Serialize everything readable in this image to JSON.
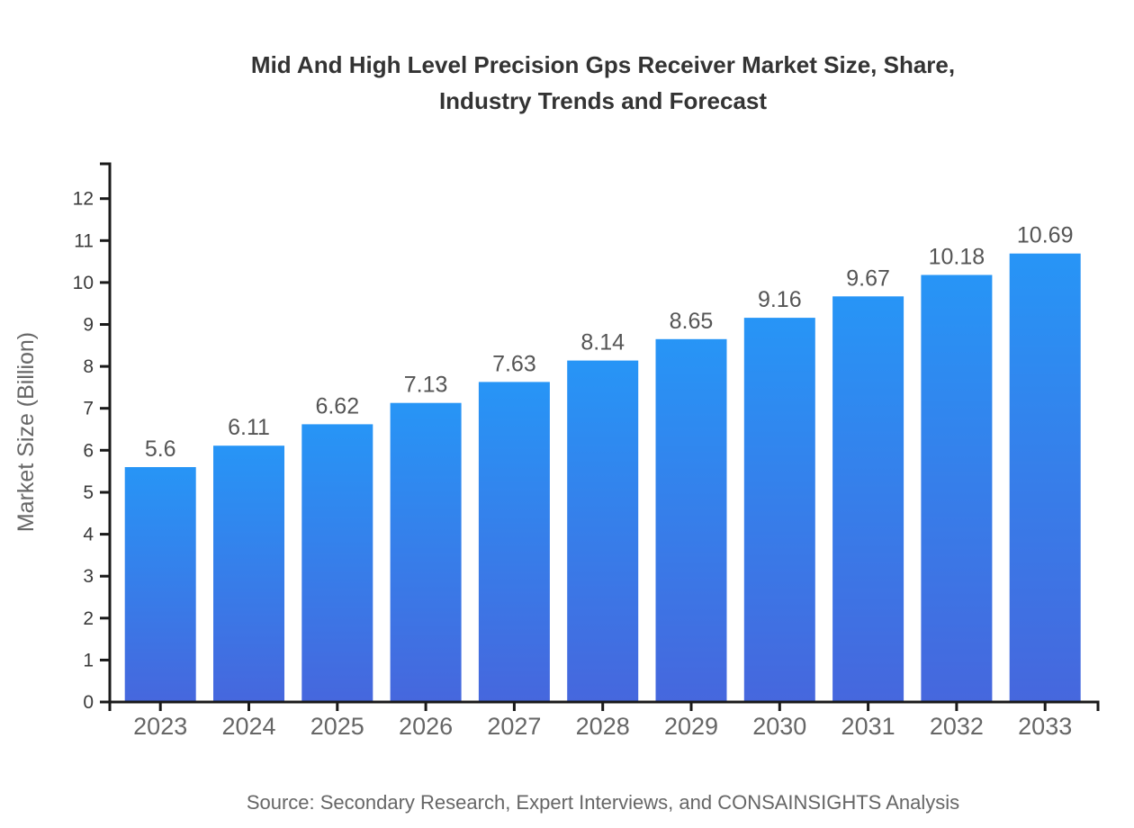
{
  "page": {
    "background": "#ffffff"
  },
  "chart_data": {
    "type": "bar",
    "title": "Mid And High Level Precision Gps Receiver Market Size, Share, Industry Trends and Forecast",
    "title_lines": [
      "Mid And High Level Precision Gps Receiver Market Size, Share,",
      "Industry Trends and Forecast"
    ],
    "categories": [
      "2023",
      "2024",
      "2025",
      "2026",
      "2027",
      "2028",
      "2029",
      "2030",
      "2031",
      "2032",
      "2033"
    ],
    "values": [
      5.6,
      6.11,
      6.62,
      7.13,
      7.63,
      8.14,
      8.65,
      9.16,
      9.67,
      10.18,
      10.69
    ],
    "xlabel": "",
    "ylabel": "Market Size (Billion)",
    "ylim": [
      0,
      12.83
    ],
    "y_ticks": [
      0,
      1,
      2,
      3,
      4,
      5,
      6,
      7,
      8,
      9,
      10,
      11,
      12
    ],
    "grid": false,
    "legend": false,
    "value_labels_shown": true,
    "source": "Source: Secondary Research, Expert Interviews, and CONSAINSIGHTS Analysis",
    "colors": {
      "bar_gradient_top": "#2795F6",
      "bar_gradient_bottom": "#4667DD",
      "axis": "#1a1a1a",
      "title": "#333333",
      "y_tick_label": "#3a3a3a",
      "x_tick_label": "#666666",
      "value_label": "#555555",
      "axis_title": "#666666",
      "source": "#666666"
    }
  }
}
